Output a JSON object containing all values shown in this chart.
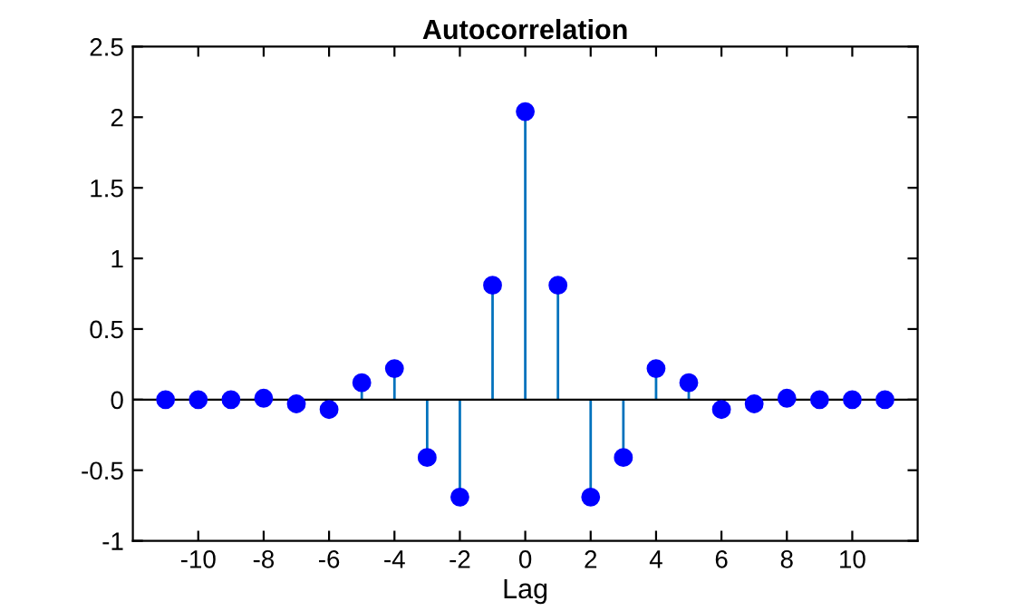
{
  "chart_data": {
    "type": "lollipop",
    "title": "Autocorrelation",
    "xlabel": "Lag",
    "x": [
      -11,
      -10,
      -9,
      -8,
      -7,
      -6,
      -5,
      -4,
      -3,
      -2,
      -1,
      0,
      1,
      2,
      3,
      4,
      5,
      6,
      7,
      8,
      9,
      10,
      11
    ],
    "series": [
      {
        "color": "#0000ff",
        "values": [
          0,
          0,
          0,
          0.01,
          -0.03,
          -0.07,
          0.12,
          0.22,
          -0.41,
          -0.69,
          0.81,
          2.04,
          0.81,
          -0.69,
          -0.41,
          0.22,
          0.12,
          -0.07,
          -0.03,
          0.01,
          0,
          0,
          0
        ]
      }
    ],
    "xlim": [
      -12,
      12
    ],
    "xticks": [
      -10,
      -8,
      -6,
      -4,
      -2,
      0,
      2,
      4,
      6,
      8,
      10
    ],
    "ylim": [
      -1,
      2.5
    ],
    "yticks": [
      -1,
      -0.5,
      0,
      0.5,
      1,
      1.5,
      2,
      2.5
    ],
    "ref_lines": [
      {
        "axis": "y",
        "value": 0,
        "color": "#000000"
      }
    ],
    "marker": "circle",
    "grid": false,
    "legend": false
  }
}
